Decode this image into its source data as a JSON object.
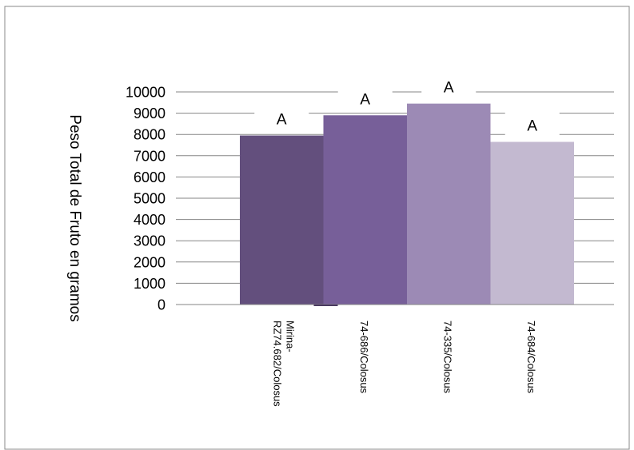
{
  "chart_data": {
    "type": "bar",
    "title": "",
    "xlabel": "",
    "ylabel": "Peso Total de Fruto en gramos",
    "ylim": [
      0,
      10000
    ],
    "yticks": [
      0,
      1000,
      2000,
      3000,
      4000,
      5000,
      6000,
      7000,
      8000,
      9000,
      10000
    ],
    "grid": true,
    "legend": "none",
    "categories": [
      {
        "line1": "Mirina-",
        "line2": "RZ74.682/Colosus"
      },
      {
        "line1": "74-686/Colosus",
        "line2": ""
      },
      {
        "line1": "74-335/Colosus",
        "line2": ""
      },
      {
        "line1": "74-684/Colosus",
        "line2": ""
      }
    ],
    "values": [
      7950,
      8900,
      9450,
      7650
    ],
    "data_labels": [
      "A",
      "A",
      "A",
      "A"
    ],
    "colors": [
      "#634f7d",
      "#775f99",
      "#9c8ab5",
      "#c3b9d0"
    ],
    "axis_color": "#868686",
    "grid_color": "#868686"
  }
}
